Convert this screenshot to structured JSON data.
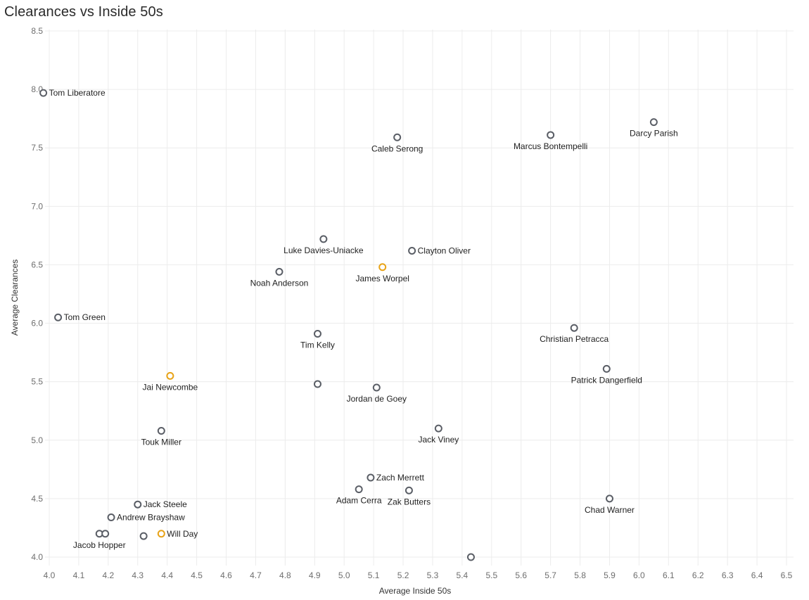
{
  "page": {
    "title": "Clearances vs Inside 50s"
  },
  "chart_data": {
    "type": "scatter",
    "title": "Clearances vs Inside 50s",
    "xlabel": "Average Inside 50s",
    "ylabel": "Average Clearances",
    "xlim": [
      4.0,
      6.5
    ],
    "ylim": [
      4.0,
      8.5
    ],
    "xticks": [
      "4.0",
      "4.1",
      "4.2",
      "4.3",
      "4.4",
      "4.5",
      "4.6",
      "4.7",
      "4.8",
      "4.9",
      "5.0",
      "5.1",
      "5.2",
      "5.3",
      "5.4",
      "5.5",
      "5.6",
      "5.7",
      "5.8",
      "5.9",
      "6.0",
      "6.1",
      "6.2",
      "6.3",
      "6.4",
      "6.5"
    ],
    "yticks": [
      "4.0",
      "4.5",
      "5.0",
      "5.5",
      "6.0",
      "6.5",
      "7.0",
      "7.5",
      "8.0",
      "8.5"
    ],
    "grid": true,
    "colors": {
      "default": "#5a5e66",
      "highlight": "#e8a317"
    },
    "points": [
      {
        "name": "Tom Liberatore",
        "x": 3.98,
        "y": 7.97,
        "highlight": false,
        "label_pos": "right"
      },
      {
        "name": "Darcy Parish",
        "x": 6.05,
        "y": 7.72,
        "highlight": false,
        "label_pos": "below"
      },
      {
        "name": "Marcus Bontempelli",
        "x": 5.7,
        "y": 7.61,
        "highlight": false,
        "label_pos": "below"
      },
      {
        "name": "Caleb Serong",
        "x": 5.18,
        "y": 7.59,
        "highlight": false,
        "label_pos": "below"
      },
      {
        "name": "Luke Davies-Uniacke",
        "x": 4.93,
        "y": 6.72,
        "highlight": false,
        "label_pos": "below"
      },
      {
        "name": "Clayton Oliver",
        "x": 5.23,
        "y": 6.62,
        "highlight": false,
        "label_pos": "right"
      },
      {
        "name": "James Worpel",
        "x": 5.13,
        "y": 6.48,
        "highlight": true,
        "label_pos": "below"
      },
      {
        "name": "Noah Anderson",
        "x": 4.78,
        "y": 6.44,
        "highlight": false,
        "label_pos": "below"
      },
      {
        "name": "Tom Green",
        "x": 4.03,
        "y": 6.05,
        "highlight": false,
        "label_pos": "right"
      },
      {
        "name": "Tim Kelly",
        "x": 4.91,
        "y": 5.91,
        "highlight": false,
        "label_pos": "below"
      },
      {
        "name": "Christian Petracca",
        "x": 5.78,
        "y": 5.96,
        "highlight": false,
        "label_pos": "below"
      },
      {
        "name": "Patrick Dangerfield",
        "x": 5.89,
        "y": 5.61,
        "highlight": false,
        "label_pos": "below"
      },
      {
        "name": "Jai Newcombe",
        "x": 4.41,
        "y": 5.55,
        "highlight": true,
        "label_pos": "below"
      },
      {
        "name": "",
        "x": 4.91,
        "y": 5.48,
        "highlight": false,
        "label_pos": "none"
      },
      {
        "name": "Jordan de Goey",
        "x": 5.11,
        "y": 5.45,
        "highlight": false,
        "label_pos": "below"
      },
      {
        "name": "Jack Viney",
        "x": 5.32,
        "y": 5.1,
        "highlight": false,
        "label_pos": "below"
      },
      {
        "name": "Touk Miller",
        "x": 4.38,
        "y": 5.08,
        "highlight": false,
        "label_pos": "below"
      },
      {
        "name": "Zach Merrett",
        "x": 5.09,
        "y": 4.68,
        "highlight": false,
        "label_pos": "right"
      },
      {
        "name": "Adam Cerra",
        "x": 5.05,
        "y": 4.58,
        "highlight": false,
        "label_pos": "below"
      },
      {
        "name": "Zak Butters",
        "x": 5.22,
        "y": 4.57,
        "highlight": false,
        "label_pos": "below"
      },
      {
        "name": "Chad Warner",
        "x": 5.9,
        "y": 4.5,
        "highlight": false,
        "label_pos": "below"
      },
      {
        "name": "Jack Steele",
        "x": 4.3,
        "y": 4.45,
        "highlight": false,
        "label_pos": "right"
      },
      {
        "name": "Andrew Brayshaw",
        "x": 4.21,
        "y": 4.34,
        "highlight": false,
        "label_pos": "right"
      },
      {
        "name": "Jacob Hopper",
        "x": 4.17,
        "y": 4.2,
        "highlight": false,
        "label_pos": "below"
      },
      {
        "name": "",
        "x": 4.19,
        "y": 4.2,
        "highlight": false,
        "label_pos": "none"
      },
      {
        "name": "",
        "x": 4.32,
        "y": 4.18,
        "highlight": false,
        "label_pos": "none"
      },
      {
        "name": "Will Day",
        "x": 4.38,
        "y": 4.2,
        "highlight": true,
        "label_pos": "right"
      },
      {
        "name": "",
        "x": 5.43,
        "y": 4.0,
        "highlight": false,
        "label_pos": "none"
      }
    ]
  }
}
